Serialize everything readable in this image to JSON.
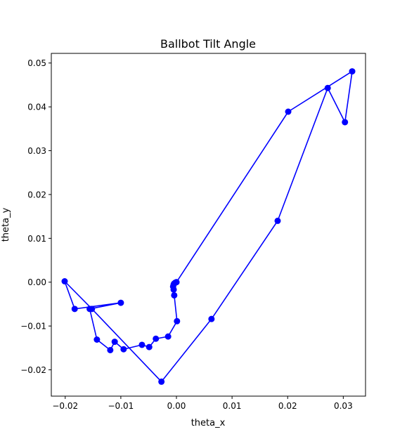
{
  "chart_data": {
    "type": "line",
    "title": "Ballbot Tilt Angle",
    "xlabel": "theta_x",
    "ylabel": "theta_y",
    "xlim": [
      -0.0225,
      0.034
    ],
    "ylim": [
      -0.026,
      0.0522
    ],
    "x_ticks": [
      -0.02,
      -0.01,
      0.0,
      0.01,
      0.02,
      0.03
    ],
    "x_tick_labels": [
      "−0.02",
      "−0.01",
      "0.00",
      "0.01",
      "0.02",
      "0.03"
    ],
    "y_ticks": [
      -0.02,
      -0.01,
      0.0,
      0.01,
      0.02,
      0.03,
      0.04,
      0.05
    ],
    "y_tick_labels": [
      "−0.02",
      "−0.01",
      "0.00",
      "0.01",
      "0.02",
      "0.03",
      "0.04",
      "0.05"
    ],
    "grid": false,
    "color": "#0000ff",
    "marker": "circle",
    "series": [
      {
        "x": [
          0.0,
          -0.0002,
          -0.0004,
          -0.0005,
          -0.0006,
          -0.0005,
          -0.0004,
          0.0001,
          -0.0015,
          -0.0037,
          -0.0049,
          -0.0062,
          -0.0095,
          -0.0111,
          -0.0119,
          -0.0143,
          -0.0156,
          -0.01,
          -0.0183,
          -0.0201,
          -0.0152,
          -0.0027,
          0.0063,
          0.0182,
          0.0272,
          0.0303,
          0.0316,
          0.0201,
          0.0
        ],
        "y": [
          0.0,
          -0.0001,
          -0.0003,
          -0.0005,
          -0.001,
          -0.0017,
          -0.003,
          -0.0089,
          -0.0124,
          -0.0129,
          -0.0148,
          -0.0143,
          -0.0153,
          -0.0136,
          -0.0155,
          -0.0131,
          -0.0061,
          -0.0047,
          -0.0061,
          0.0002,
          -0.0061,
          -0.0227,
          -0.0084,
          0.014,
          0.0443,
          0.0365,
          0.0481,
          0.0389,
          0.0
        ]
      }
    ]
  }
}
